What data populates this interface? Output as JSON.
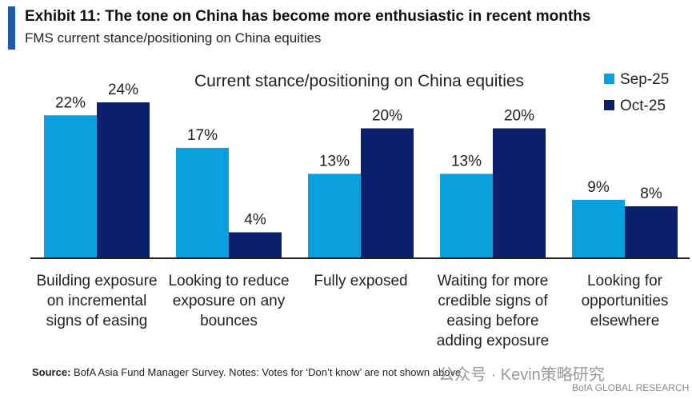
{
  "header": {
    "title": "Exhibit 11: The tone on China has become more enthusiastic in recent months",
    "subtitle": "FMS current stance/positioning on China equities"
  },
  "footer": {
    "source_label": "Source:",
    "source_text": "BofA Asia Fund Manager Survey. Notes: Votes for ‘Don’t know’ are not shown above",
    "watermark": "公众号 · Kevin策略研究",
    "brand": "BofA GLOBAL RESEARCH"
  },
  "colors": {
    "accent": "#1f5aa8",
    "sep": "#0a9fdd",
    "oct": "#0c1f6b",
    "axis": "#222222"
  },
  "chart_data": {
    "type": "bar",
    "title": "Current stance/positioning on China equities",
    "categories": [
      [
        "Building exposure",
        "on incremental",
        "signs of easing"
      ],
      [
        "Looking to reduce",
        "exposure on any",
        "bounces"
      ],
      [
        "Fully exposed"
      ],
      [
        "Waiting for more",
        "credible signs of",
        "easing before",
        "adding exposure"
      ],
      [
        "Looking for",
        "opportunities",
        "elsewhere"
      ]
    ],
    "series": [
      {
        "name": "Sep-25",
        "values": [
          22,
          17,
          13,
          13,
          9
        ],
        "labels": [
          "22%",
          "17%",
          "13%",
          "13%",
          "9%"
        ]
      },
      {
        "name": "Oct-25",
        "values": [
          24,
          4,
          20,
          20,
          8
        ],
        "labels": [
          "24%",
          "4%",
          "20%",
          "20%",
          "8%"
        ]
      }
    ],
    "ylim": [
      0,
      24
    ],
    "grid": false,
    "legend": "top-right"
  }
}
